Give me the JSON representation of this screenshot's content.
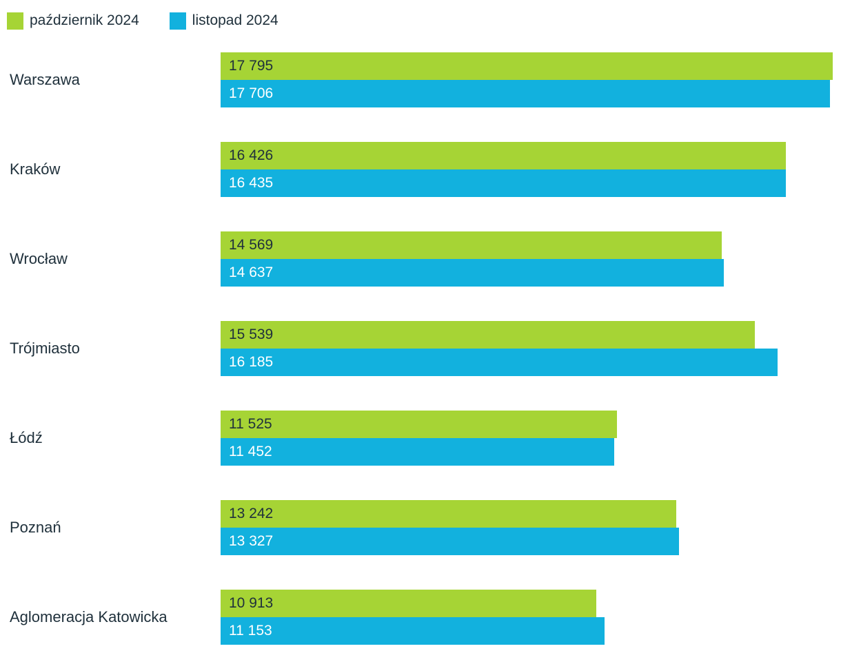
{
  "chart_data": {
    "type": "bar",
    "orientation": "horizontal",
    "title": "",
    "xlabel": "",
    "ylabel": "",
    "xlim": [
      0,
      17795
    ],
    "grid": false,
    "legend_position": "top-left",
    "categories": [
      "Warszawa",
      "Kraków",
      "Wrocław",
      "Trójmiasto",
      "Łódź",
      "Poznań",
      "Aglomeracja Katowicka"
    ],
    "series": [
      {
        "name": "październik 2024",
        "color": "#a6d435",
        "values": [
          17795,
          16426,
          14569,
          15539,
          11525,
          13242,
          10913
        ],
        "display_values": [
          "17 795",
          "16 426",
          "14 569",
          "15 539",
          "11 525",
          "13 242",
          "10 913"
        ]
      },
      {
        "name": "listopad 2024",
        "color": "#12b1de",
        "values": [
          17706,
          16435,
          14637,
          16185,
          11452,
          13327,
          11153
        ],
        "display_values": [
          "17 706",
          "16 435",
          "14 637",
          "16 185",
          "11 452",
          "13 327",
          "11 153"
        ]
      }
    ]
  }
}
